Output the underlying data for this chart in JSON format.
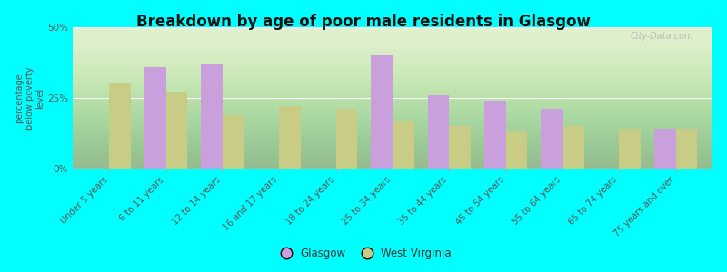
{
  "title": "Breakdown by age of poor male residents in Glasgow",
  "ylabel": "percentage\nbelow poverty\nlevel",
  "categories": [
    "Under 5 years",
    "6 to 11 years",
    "12 to 14 years",
    "16 and 17 years",
    "18 to 24 years",
    "25 to 34 years",
    "35 to 44 years",
    "45 to 54 years",
    "55 to 64 years",
    "65 to 74 years",
    "75 years and over"
  ],
  "glasgow_values": [
    null,
    36,
    37,
    null,
    null,
    40,
    26,
    24,
    21,
    null,
    14
  ],
  "west_virginia_values": [
    30,
    27,
    19,
    22,
    21,
    17,
    15,
    13,
    15,
    14,
    14
  ],
  "glasgow_color": "#c9a0dc",
  "west_virginia_color": "#c8cc84",
  "background_color": "#00ffff",
  "ylim": [
    0,
    50
  ],
  "ytick_labels": [
    "0%",
    "25%",
    "50%"
  ],
  "bar_width": 0.38,
  "watermark": "City-Data.com",
  "legend_labels": [
    "Glasgow",
    "West Virginia"
  ]
}
